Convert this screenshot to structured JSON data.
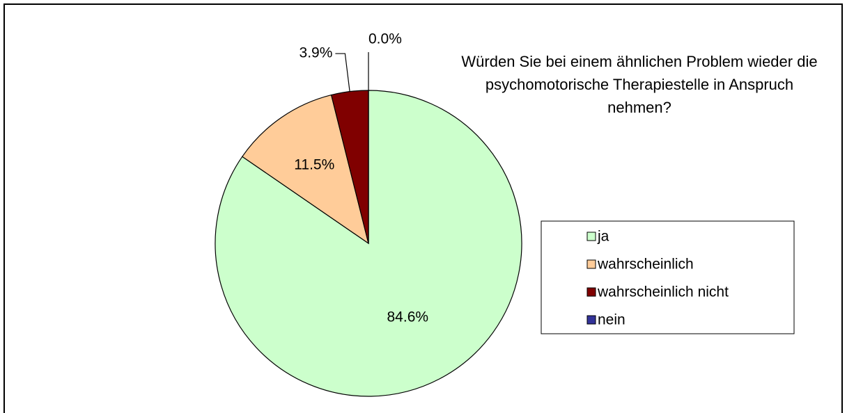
{
  "chart_data": {
    "type": "pie",
    "title": "Würden Sie bei einem ähnlichen Problem wieder die psychomotorische Therapiestelle in Anspruch nehmen?",
    "categories": [
      "ja",
      "wahrscheinlich",
      "wahrscheinlich nicht",
      "nein"
    ],
    "values": [
      84.6,
      11.5,
      3.9,
      0.0
    ],
    "value_labels": [
      "84.6%",
      "11.5%",
      "3.9%",
      "0.0%"
    ],
    "colors": [
      "#ccffcc",
      "#ffcc99",
      "#800000",
      "#333399"
    ],
    "legend": "right"
  }
}
